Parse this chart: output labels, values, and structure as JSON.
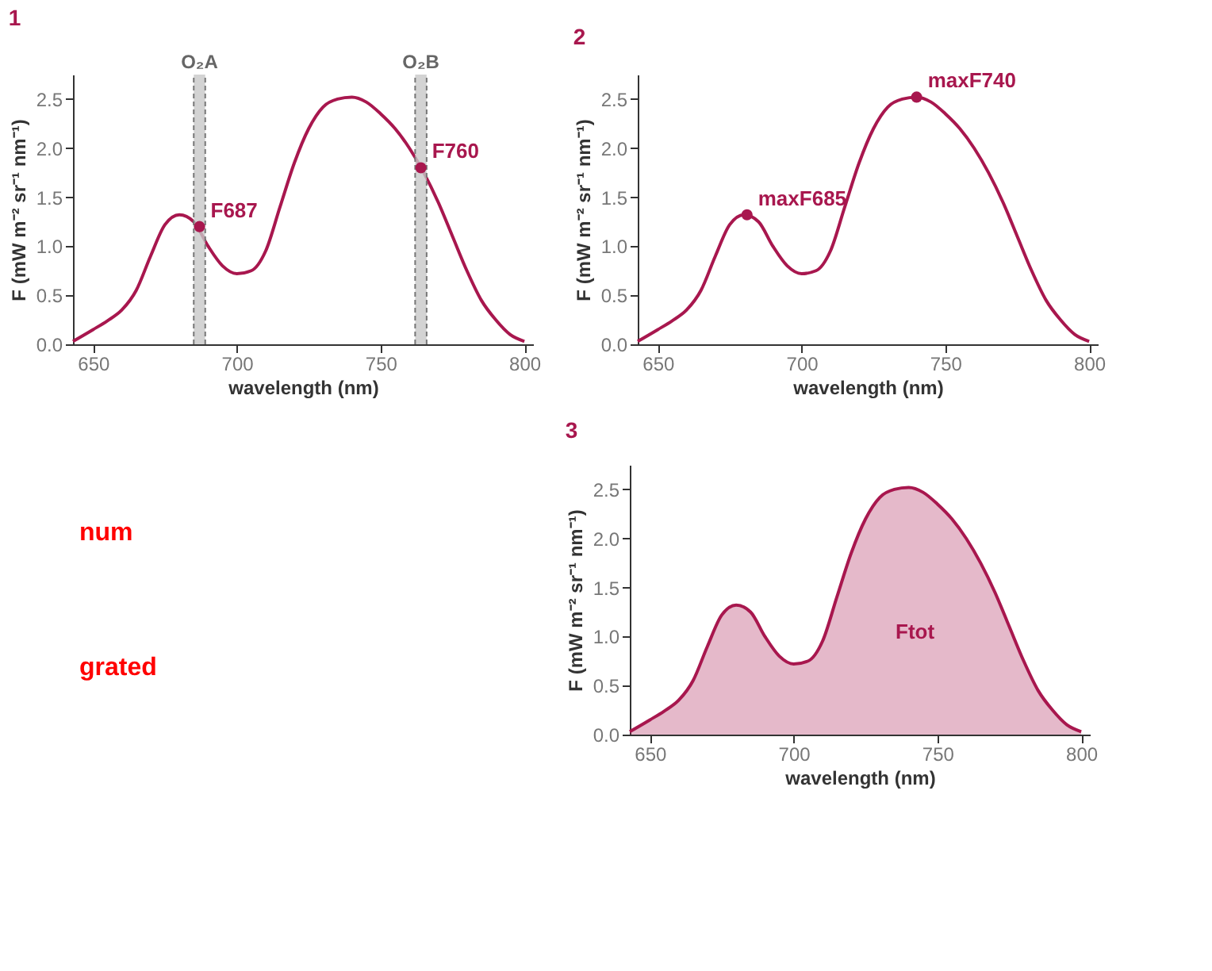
{
  "chart_data": [
    {
      "type": "line",
      "title": "1",
      "xlabel": "wavelength (nm)",
      "ylabel": "F (mW m⁻² sr⁻¹ nm⁻¹)",
      "xlim": [
        643,
        803
      ],
      "ylim": [
        0,
        2.75
      ],
      "xticks": [
        650,
        700,
        750,
        800
      ],
      "yticks": [
        {
          "value": 0,
          "label": "0.0"
        },
        0.5,
        {
          "value": 1,
          "label": "1.0"
        },
        1.5,
        {
          "value": 2,
          "label": "2.0"
        },
        2.5
      ],
      "grid": false,
      "x": [
        643,
        650,
        655,
        660,
        665,
        670,
        675,
        680,
        685,
        690,
        695,
        700,
        705,
        710,
        715,
        720,
        725,
        730,
        735,
        740,
        745,
        750,
        755,
        760,
        765,
        770,
        775,
        780,
        785,
        790,
        795,
        800
      ],
      "series": [
        {
          "type": "line",
          "color": "#a8174e",
          "values": [
            0.03,
            0.15,
            0.24,
            0.35,
            0.55,
            0.9,
            1.22,
            1.32,
            1.25,
            1.0,
            0.8,
            0.72,
            0.75,
            0.95,
            1.4,
            1.85,
            2.2,
            2.42,
            2.5,
            2.52,
            2.47,
            2.35,
            2.2,
            2.0,
            1.75,
            1.45,
            1.1,
            0.75,
            0.45,
            0.25,
            0.1,
            0.03
          ]
        },
        {
          "type": "scatter",
          "color": "#a8174e",
          "x": [
            687,
            764
          ],
          "values": [
            1.2,
            1.8
          ]
        }
      ],
      "bands": [
        {
          "axis": "x",
          "from": 685,
          "to": 689,
          "label": "O₂A",
          "color": "#c8c8c8"
        },
        {
          "axis": "x",
          "from": 762,
          "to": 766,
          "label": "O₂B",
          "color": "#c8c8c8"
        }
      ],
      "annotations": [
        {
          "text": "F687",
          "x": 687,
          "y": 1.2
        },
        {
          "text": "F760",
          "x": 764,
          "y": 1.8
        }
      ]
    },
    {
      "type": "line",
      "title": "2",
      "xlabel": "wavelength (nm)",
      "ylabel": "F (mW m⁻² sr⁻¹ nm⁻¹)",
      "xlim": [
        643,
        803
      ],
      "ylim": [
        0,
        2.75
      ],
      "xticks": [
        650,
        700,
        750,
        800
      ],
      "yticks": [
        {
          "value": 0,
          "label": "0.0"
        },
        0.5,
        {
          "value": 1,
          "label": "1.0"
        },
        1.5,
        {
          "value": 2,
          "label": "2.0"
        },
        2.5
      ],
      "grid": false,
      "x": [
        643,
        650,
        655,
        660,
        665,
        670,
        675,
        680,
        685,
        690,
        695,
        700,
        705,
        710,
        715,
        720,
        725,
        730,
        735,
        740,
        745,
        750,
        755,
        760,
        765,
        770,
        775,
        780,
        785,
        790,
        795,
        800
      ],
      "series": [
        {
          "type": "line",
          "color": "#a8174e",
          "values": [
            0.03,
            0.15,
            0.24,
            0.35,
            0.55,
            0.9,
            1.22,
            1.32,
            1.25,
            1.0,
            0.8,
            0.72,
            0.75,
            0.95,
            1.4,
            1.85,
            2.2,
            2.42,
            2.5,
            2.52,
            2.47,
            2.35,
            2.2,
            2.0,
            1.75,
            1.45,
            1.1,
            0.75,
            0.45,
            0.25,
            0.1,
            0.03
          ]
        },
        {
          "type": "scatter",
          "color": "#a8174e",
          "x": [
            681,
            740
          ],
          "values": [
            1.32,
            2.52
          ]
        }
      ],
      "annotations": [
        {
          "text": "maxF685",
          "x": 681,
          "y": 1.32
        },
        {
          "text": "maxF740",
          "x": 740,
          "y": 2.52
        }
      ]
    },
    {
      "type": "other",
      "annotations": [
        "num",
        "grated"
      ]
    },
    {
      "type": "area",
      "title": "3",
      "xlabel": "wavelength (nm)",
      "ylabel": "F (mW m⁻² sr⁻¹ nm⁻¹)",
      "xlim": [
        643,
        803
      ],
      "ylim": [
        0,
        2.75
      ],
      "xticks": [
        650,
        700,
        750,
        800
      ],
      "yticks": [
        {
          "value": 0,
          "label": "0.0"
        },
        0.5,
        {
          "value": 1,
          "label": "1.0"
        },
        1.5,
        {
          "value": 2,
          "label": "2.0"
        },
        2.5
      ],
      "grid": false,
      "x": [
        643,
        650,
        655,
        660,
        665,
        670,
        675,
        680,
        685,
        690,
        695,
        700,
        705,
        710,
        715,
        720,
        725,
        730,
        735,
        740,
        745,
        750,
        755,
        760,
        765,
        770,
        775,
        780,
        785,
        790,
        795,
        800
      ],
      "series": [
        {
          "type": "area",
          "color": "#a8174e",
          "values": [
            0.03,
            0.15,
            0.24,
            0.35,
            0.55,
            0.9,
            1.22,
            1.32,
            1.25,
            1.0,
            0.8,
            0.72,
            0.75,
            0.95,
            1.4,
            1.85,
            2.2,
            2.42,
            2.5,
            2.52,
            2.47,
            2.35,
            2.2,
            2.0,
            1.75,
            1.45,
            1.1,
            0.75,
            0.45,
            0.25,
            0.1,
            0.03
          ]
        }
      ],
      "annotations": [
        "Ftot"
      ]
    }
  ]
}
